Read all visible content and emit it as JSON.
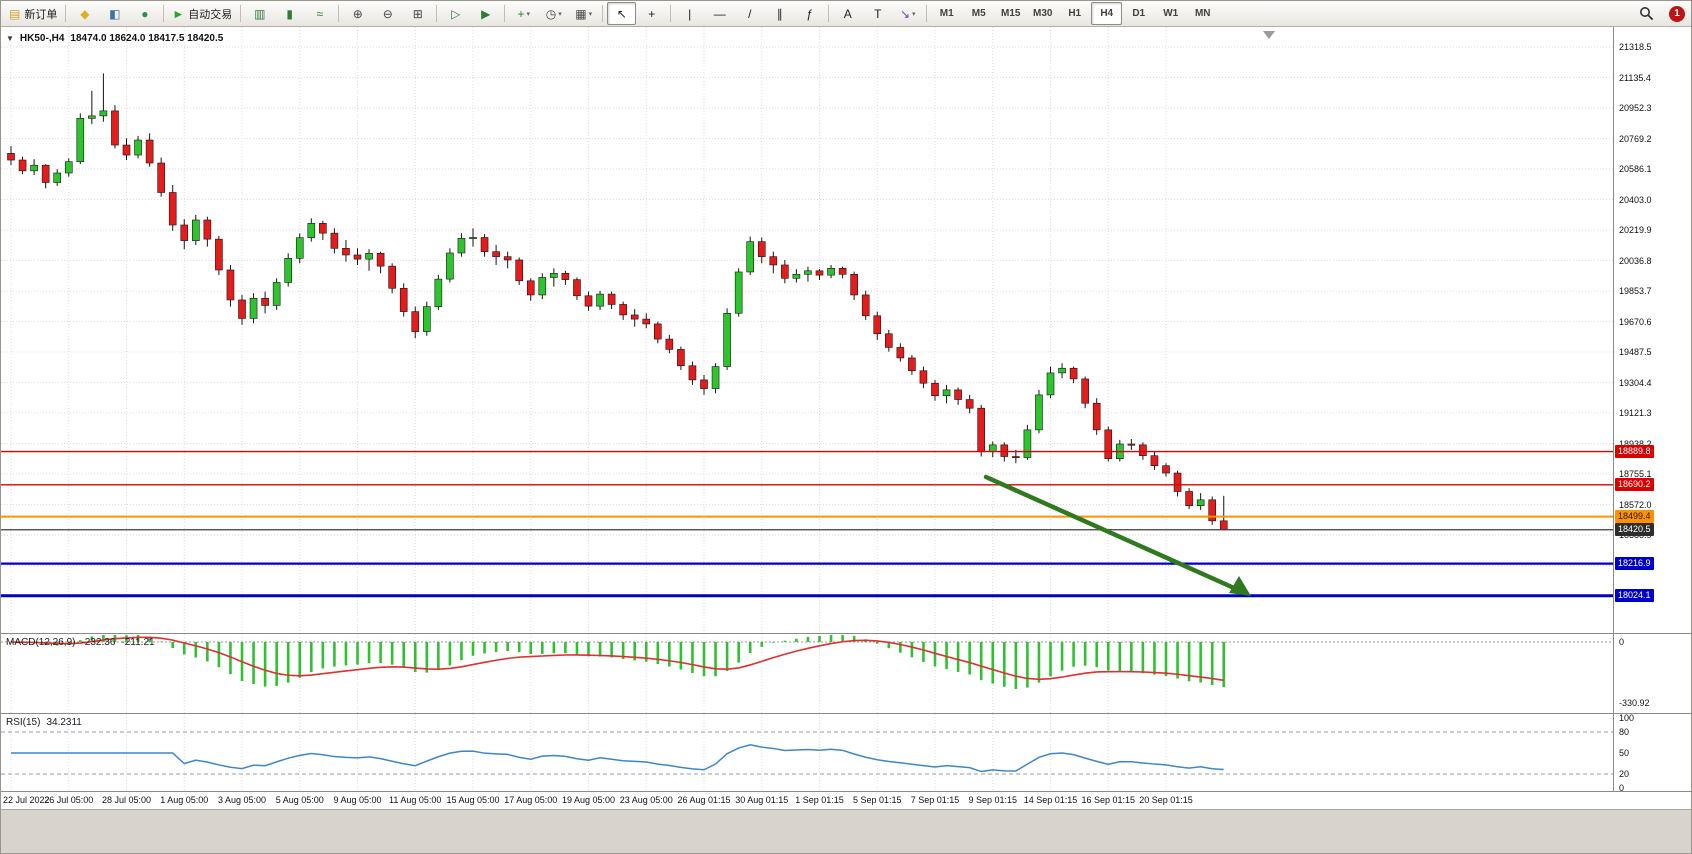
{
  "toolbar": {
    "groups": [
      [
        {
          "name": "new-order-button",
          "glyph": "▤",
          "glyph_color": "#c9a227",
          "label": "新订单"
        }
      ],
      [
        {
          "name": "profiles-icon-button",
          "glyph": "◆",
          "glyph_color": "#dfaf1f"
        },
        {
          "name": "market-watch-icon-button",
          "glyph": "◧",
          "glyph_color": "#3a6fb0"
        },
        {
          "name": "data-window-icon-button",
          "glyph": "●",
          "glyph_color": "#2f8f4f"
        }
      ],
      [
        {
          "name": "autotrading-button",
          "glyph": "►",
          "glyph_color": "#28a428",
          "label": "自动交易"
        }
      ],
      [
        {
          "name": "chart-bars-button",
          "glyph": "▥",
          "glyph_color": "#2e7d32"
        },
        {
          "name": "chart-candles-button",
          "glyph": "▮",
          "glyph_color": "#2e7d32"
        },
        {
          "name": "chart-line-button",
          "glyph": "≈",
          "glyph_color": "#2e7d32"
        }
      ],
      [
        {
          "name": "zoom-in-button",
          "glyph": "⊕",
          "glyph_color": "#444444"
        },
        {
          "name": "zoom-out-button",
          "glyph": "⊖",
          "glyph_color": "#444444"
        },
        {
          "name": "tile-windows-button",
          "glyph": "⊞",
          "glyph_color": "#444444"
        }
      ],
      [
        {
          "name": "auto-scroll-button",
          "glyph": "▷",
          "glyph_color": "#2e7d32"
        },
        {
          "name": "chart-shift-button",
          "glyph": "▶",
          "glyph_color": "#2e7d32"
        }
      ],
      [
        {
          "name": "indicators-button",
          "glyph": "+",
          "glyph_color": "#1c8c1c",
          "dropdown": true
        },
        {
          "name": "periods-button",
          "glyph": "◷",
          "glyph_color": "#444444",
          "dropdown": true
        },
        {
          "name": "templates-button",
          "glyph": "▦",
          "glyph_color": "#444444",
          "dropdown": true
        }
      ],
      [
        {
          "name": "cursor-button",
          "glyph": "↖",
          "glyph_color": "#222222",
          "active": true
        },
        {
          "name": "crosshair-button",
          "glyph": "+",
          "glyph_color": "#222222"
        }
      ],
      [
        {
          "name": "vertical-line-button",
          "glyph": "|",
          "glyph_color": "#222222"
        },
        {
          "name": "horizontal-line-button",
          "glyph": "—",
          "glyph_color": "#222222"
        },
        {
          "name": "trendline-button",
          "glyph": "/",
          "glyph_color": "#222222"
        },
        {
          "name": "channel-button",
          "glyph": "∥",
          "glyph_color": "#222222"
        },
        {
          "name": "fibonacci-button",
          "glyph": "ƒ",
          "glyph_color": "#222222"
        }
      ],
      [
        {
          "name": "text-button",
          "glyph": "A",
          "glyph_color": "#222222"
        },
        {
          "name": "label-button",
          "glyph": "T",
          "glyph_color": "#222222"
        },
        {
          "name": "arrows-button",
          "glyph": "↘",
          "glyph_color": "#7a3fb0",
          "dropdown": true
        }
      ]
    ],
    "timeframes": [
      {
        "label": "M1"
      },
      {
        "label": "M5"
      },
      {
        "label": "M15"
      },
      {
        "label": "M30"
      },
      {
        "label": "H1"
      },
      {
        "label": "H4",
        "active": true
      },
      {
        "label": "D1"
      },
      {
        "label": "W1"
      },
      {
        "label": "MN"
      }
    ],
    "notification_count": "1"
  },
  "chart": {
    "symbol_title": "HK50-,H4",
    "ohlc_text": "18474.0 18624.0 18417.5 18420.5",
    "collapse_glyph": "▼",
    "price_axis_top": 21318.5,
    "price_step": 183.1,
    "price_axis_labels": [
      "21318.5",
      "21135.4",
      "20952.3",
      "20769.2",
      "20586.1",
      "20403.0",
      "20219.9",
      "20036.8",
      "19853.7",
      "19670.6",
      "19487.5",
      "19304.4",
      "19121.3",
      "18938.2",
      "18755.1",
      "18572.0",
      "18388.9",
      "18205.8",
      "18022.7"
    ],
    "lines": [
      {
        "name": "resistance-line-1",
        "price": 18889.8,
        "label": "18889.8",
        "color": "#dd0000",
        "width": 1.4,
        "tag_bg": "#dd0000",
        "tag_fg": "#ffffff"
      },
      {
        "name": "resistance-line-2",
        "price": 18690.2,
        "label": "18690.2",
        "color": "#dd0000",
        "width": 1.4,
        "tag_bg": "#dd0000",
        "tag_fg": "#ffffff"
      },
      {
        "name": "support-line-orange",
        "price": 18499.4,
        "label": "18499.4",
        "color": "#ff9000",
        "width": 2,
        "tag_bg": "#ff9000",
        "tag_fg": "#1a1a1a"
      },
      {
        "name": "current-price-line",
        "price": 18420.5,
        "label": "18420.5",
        "color": "#3c3c3c",
        "width": 1.2,
        "tag_bg": "#2d2d2d",
        "tag_fg": "#ffffff"
      },
      {
        "name": "support-line-blue-1",
        "price": 18216.9,
        "label": "18216.9",
        "color": "#0000cc",
        "width": 2.2,
        "tag_bg": "#0000cc",
        "tag_fg": "#ffffff"
      },
      {
        "name": "support-line-blue-2",
        "price": 18024.1,
        "label": "18024.1",
        "color": "#0000cc",
        "width": 3,
        "tag_bg": "#0000cc",
        "tag_fg": "#ffffff"
      }
    ],
    "time_labels": [
      "22 Jul 2022",
      "26 Jul 05:00",
      "28 Jul 05:00",
      "1 Aug 05:00",
      "3 Aug 05:00",
      "5 Aug 05:00",
      "9 Aug 05:00",
      "11 Aug 05:00",
      "15 Aug 05:00",
      "17 Aug 05:00",
      "19 Aug 05:00",
      "23 Aug 05:00",
      "26 Aug 01:15",
      "30 Aug 01:15",
      "1 Sep 01:15",
      "5 Sep 01:15",
      "7 Sep 01:15",
      "9 Sep 01:15",
      "14 Sep 01:15",
      "16 Sep 01:15",
      "20 Sep 01:15"
    ]
  },
  "chart_data": {
    "type": "candlestick",
    "symbol": "HK50-",
    "timeframe": "H4",
    "current_ohlc": {
      "open": 18474.0,
      "high": 18624.0,
      "low": 18417.5,
      "close": 18420.5
    },
    "up_color": "#2ec42e",
    "down_color": "#e51c1c",
    "candles": [
      [
        20680,
        20725,
        20610,
        20640
      ],
      [
        20640,
        20660,
        20555,
        20575
      ],
      [
        20575,
        20645,
        20550,
        20609
      ],
      [
        20609,
        20615,
        20470,
        20505
      ],
      [
        20505,
        20585,
        20485,
        20562
      ],
      [
        20562,
        20650,
        20540,
        20630
      ],
      [
        20630,
        20920,
        20615,
        20890
      ],
      [
        20890,
        21055,
        20855,
        20905
      ],
      [
        20905,
        21160,
        20870,
        20935
      ],
      [
        20935,
        20970,
        20710,
        20730
      ],
      [
        20730,
        20770,
        20640,
        20670
      ],
      [
        20670,
        20785,
        20650,
        20760
      ],
      [
        20760,
        20800,
        20600,
        20622
      ],
      [
        20622,
        20655,
        20420,
        20445
      ],
      [
        20445,
        20490,
        20215,
        20250
      ],
      [
        20250,
        20285,
        20105,
        20156
      ],
      [
        20156,
        20310,
        20130,
        20280
      ],
      [
        20280,
        20300,
        20120,
        20165
      ],
      [
        20165,
        20185,
        19950,
        19980
      ],
      [
        19980,
        20010,
        19760,
        19800
      ],
      [
        19800,
        19830,
        19650,
        19689
      ],
      [
        19689,
        19840,
        19660,
        19810
      ],
      [
        19810,
        19850,
        19720,
        19767
      ],
      [
        19767,
        19930,
        19740,
        19905
      ],
      [
        19905,
        20080,
        19880,
        20050
      ],
      [
        20050,
        20200,
        20020,
        20174
      ],
      [
        20174,
        20290,
        20150,
        20260
      ],
      [
        20260,
        20275,
        20160,
        20201
      ],
      [
        20201,
        20230,
        20080,
        20110
      ],
      [
        20110,
        20160,
        20030,
        20070
      ],
      [
        20070,
        20110,
        20010,
        20045
      ],
      [
        20045,
        20105,
        19975,
        20080
      ],
      [
        20080,
        20090,
        19960,
        20003
      ],
      [
        20003,
        20020,
        19840,
        19870
      ],
      [
        19870,
        19900,
        19700,
        19730
      ],
      [
        19730,
        19760,
        19570,
        19610
      ],
      [
        19610,
        19790,
        19585,
        19760
      ],
      [
        19760,
        19950,
        19740,
        19925
      ],
      [
        19925,
        20110,
        19905,
        20082
      ],
      [
        20082,
        20200,
        20060,
        20170
      ],
      [
        20170,
        20230,
        20120,
        20175
      ],
      [
        20175,
        20195,
        20060,
        20090
      ],
      [
        20090,
        20130,
        20010,
        20060
      ],
      [
        20060,
        20090,
        19990,
        20040
      ],
      [
        20040,
        20055,
        19890,
        19915
      ],
      [
        19915,
        19930,
        19795,
        19830
      ],
      [
        19830,
        19960,
        19805,
        19935
      ],
      [
        19935,
        19990,
        19880,
        19960
      ],
      [
        19960,
        19975,
        19890,
        19922
      ],
      [
        19922,
        19935,
        19800,
        19825
      ],
      [
        19825,
        19850,
        19735,
        19763
      ],
      [
        19763,
        19855,
        19740,
        19835
      ],
      [
        19835,
        19850,
        19745,
        19773
      ],
      [
        19773,
        19790,
        19680,
        19710
      ],
      [
        19710,
        19745,
        19640,
        19685
      ],
      [
        19685,
        19720,
        19630,
        19656
      ],
      [
        19656,
        19670,
        19540,
        19565
      ],
      [
        19565,
        19590,
        19480,
        19503
      ],
      [
        19503,
        19520,
        19380,
        19405
      ],
      [
        19405,
        19430,
        19290,
        19320
      ],
      [
        19320,
        19350,
        19230,
        19268
      ],
      [
        19268,
        19420,
        19240,
        19400
      ],
      [
        19400,
        19750,
        19380,
        19720
      ],
      [
        19720,
        19990,
        19700,
        19968
      ],
      [
        19968,
        20180,
        19950,
        20150
      ],
      [
        20150,
        20175,
        20020,
        20060
      ],
      [
        20060,
        20090,
        19960,
        20010
      ],
      [
        20010,
        20040,
        19900,
        19930
      ],
      [
        19930,
        19985,
        19905,
        19954
      ],
      [
        19954,
        20000,
        19910,
        19975
      ],
      [
        19975,
        19985,
        19920,
        19949
      ],
      [
        19949,
        20010,
        19930,
        19990
      ],
      [
        19990,
        20000,
        19930,
        19954
      ],
      [
        19954,
        19970,
        19800,
        19830
      ],
      [
        19830,
        19855,
        19680,
        19705
      ],
      [
        19705,
        19730,
        19560,
        19597
      ],
      [
        19597,
        19620,
        19490,
        19515
      ],
      [
        19515,
        19540,
        19430,
        19452
      ],
      [
        19452,
        19470,
        19350,
        19375
      ],
      [
        19375,
        19400,
        19270,
        19300
      ],
      [
        19300,
        19320,
        19195,
        19225
      ],
      [
        19225,
        19290,
        19180,
        19260
      ],
      [
        19260,
        19275,
        19170,
        19202
      ],
      [
        19202,
        19230,
        19120,
        19150
      ],
      [
        19150,
        19170,
        18860,
        18890
      ],
      [
        18890,
        18950,
        18855,
        18930
      ],
      [
        18930,
        18945,
        18830,
        18860
      ],
      [
        18860,
        18900,
        18820,
        18854
      ],
      [
        18854,
        19050,
        18840,
        19020
      ],
      [
        19020,
        19260,
        19000,
        19230
      ],
      [
        19230,
        19400,
        19210,
        19362
      ],
      [
        19362,
        19420,
        19330,
        19390
      ],
      [
        19390,
        19400,
        19300,
        19326
      ],
      [
        19326,
        19340,
        19150,
        19180
      ],
      [
        19180,
        19210,
        18990,
        19020
      ],
      [
        19020,
        19040,
        18830,
        18847
      ],
      [
        18847,
        18960,
        18830,
        18935
      ],
      [
        18935,
        18965,
        18900,
        18930
      ],
      [
        18930,
        18945,
        18840,
        18865
      ],
      [
        18865,
        18890,
        18780,
        18805
      ],
      [
        18805,
        18820,
        18740,
        18761
      ],
      [
        18761,
        18775,
        18620,
        18650
      ],
      [
        18650,
        18670,
        18545,
        18565
      ],
      [
        18565,
        18640,
        18540,
        18600
      ],
      [
        18600,
        18620,
        18450,
        18474
      ],
      [
        18474,
        18624,
        18417.5,
        18420.5
      ]
    ]
  },
  "indicators": {
    "macd": {
      "label": "MACD(12,26,9)",
      "main_value": "-232.36",
      "signal_value": "-211.21",
      "fast": 12,
      "slow": 26,
      "signal": 9,
      "axis_labels": [
        "0",
        "-330.92"
      ],
      "min_scale": -330.92,
      "histogram_color": "#2fc12f",
      "signal_color": "#e03030"
    },
    "rsi": {
      "label": "RSI(15)",
      "value": "34.2311",
      "period": 15,
      "axis_labels": [
        "100",
        "80",
        "50",
        "20",
        "0"
      ],
      "levels": [
        80,
        20
      ],
      "line_color": "#3f86c6"
    }
  },
  "annotation": {
    "type": "arrow",
    "color": "#2f7a1f"
  }
}
